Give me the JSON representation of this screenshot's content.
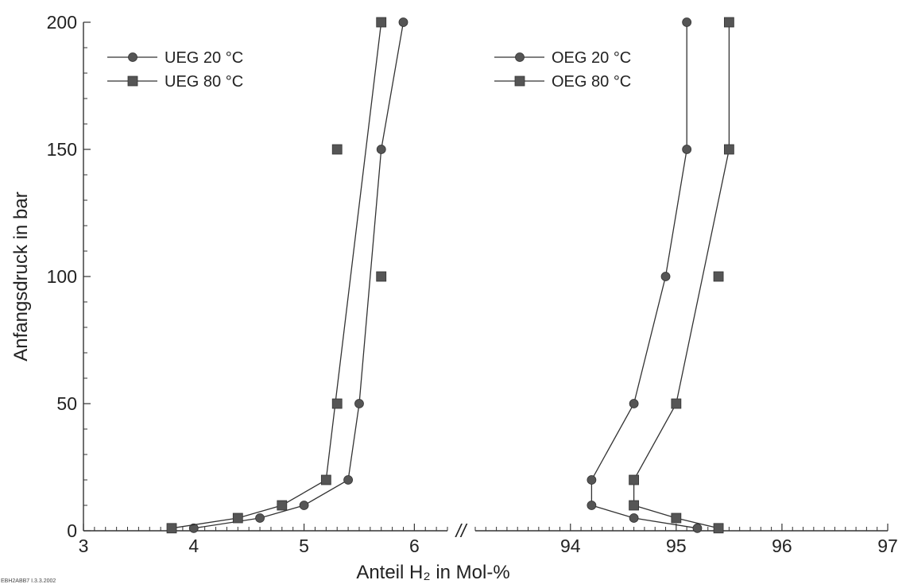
{
  "chart_data": {
    "type": "line",
    "xlabel": "Anteil H₂ in Mol-%",
    "ylabel": "Anfangsdruck in bar",
    "ylim": [
      0,
      200
    ],
    "yticks": [
      "0",
      "50",
      "100",
      "150",
      "200"
    ],
    "xticks_left": [
      "3",
      "4",
      "5",
      "6"
    ],
    "xticks_right": [
      "94",
      "95",
      "96",
      "97"
    ],
    "x_break": "//",
    "panels": [
      {
        "name": "left",
        "xlim": [
          3,
          6.3
        ]
      },
      {
        "name": "right",
        "xlim": [
          93.1,
          97
        ]
      }
    ],
    "series": [
      {
        "name": "UEG 20 °C",
        "panel": "left",
        "marker": "circle",
        "connected": true,
        "x": [
          4.0,
          4.6,
          5.0,
          5.4,
          5.5,
          5.7,
          5.9
        ],
        "y": [
          1,
          5,
          10,
          20,
          50,
          150,
          200
        ]
      },
      {
        "name": "UEG 80 °C",
        "panel": "left",
        "marker": "square",
        "connected": true,
        "x": [
          3.8,
          4.4,
          4.8,
          5.2,
          5.3,
          5.3,
          5.7,
          5.7
        ],
        "y": [
          1,
          5,
          10,
          20,
          50,
          150,
          100,
          200
        ],
        "line_x": [
          3.8,
          4.4,
          4.8,
          5.2,
          5.7
        ],
        "line_y": [
          1,
          5,
          10,
          20,
          200
        ]
      },
      {
        "name": "OEG 20 °C",
        "panel": "right",
        "marker": "circle",
        "connected": true,
        "x": [
          95.2,
          94.6,
          94.2,
          94.2,
          94.6,
          94.9,
          95.1,
          95.1
        ],
        "y": [
          1,
          5,
          10,
          20,
          50,
          100,
          150,
          200
        ]
      },
      {
        "name": "OEG 80 °C",
        "panel": "right",
        "marker": "square",
        "connected": true,
        "x": [
          95.4,
          95.0,
          94.6,
          94.6,
          95.0,
          95.4,
          95.5,
          95.5
        ],
        "y": [
          1,
          5,
          10,
          20,
          50,
          100,
          150,
          200
        ],
        "line_x": [
          95.4,
          95.0,
          94.6,
          94.6,
          95.0,
          95.5,
          95.5
        ],
        "line_y": [
          1,
          5,
          10,
          20,
          50,
          150,
          200
        ]
      }
    ],
    "legends": [
      {
        "panel": "left",
        "entries": [
          "UEG 20 °C",
          "UEG 80 °C"
        ]
      },
      {
        "panel": "right",
        "entries": [
          "OEG 20 °C",
          "OEG 80 °C"
        ]
      }
    ],
    "colors": {
      "line": "#333333",
      "marker": "#555555"
    },
    "stamp": "EBH2ABB7 I.3.3.2002"
  }
}
